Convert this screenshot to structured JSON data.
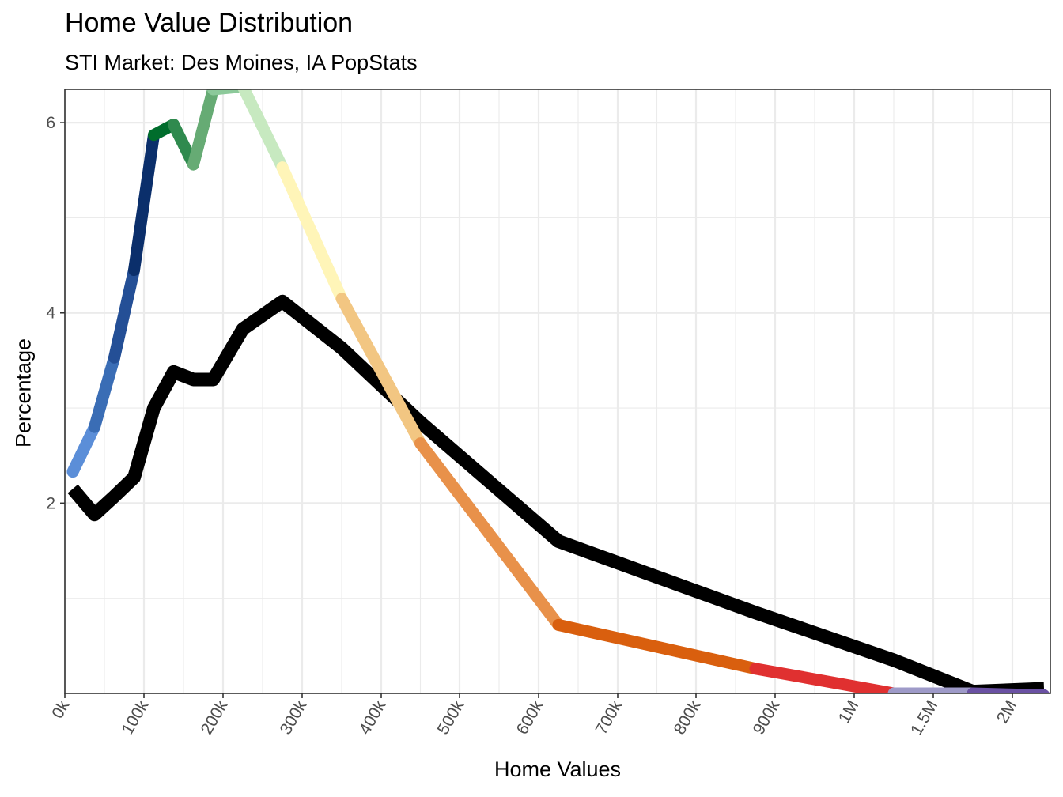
{
  "chart_data": {
    "type": "line",
    "title": "Home Value Distribution",
    "subtitle": "STI Market: Des Moines, IA PopStats",
    "xlabel": "Home Values",
    "ylabel": "Percentage",
    "x_ticks": [
      "0k",
      "100k",
      "200k",
      "300k",
      "400k",
      "500k",
      "600k",
      "700k",
      "800k",
      "900k",
      "1M",
      "1.5M",
      "2M"
    ],
    "y_ticks": [
      "2",
      "4",
      "6"
    ],
    "ylim": [
      0,
      6.35
    ],
    "grid": true,
    "series": [
      {
        "color": "#000000",
        "points": [
          {
            "x": 10000,
            "y": 2.15
          },
          {
            "x": 37500,
            "y": 1.88
          },
          {
            "x": 62500,
            "y": 2.07
          },
          {
            "x": 87500,
            "y": 2.27
          },
          {
            "x": 112500,
            "y": 3.0
          },
          {
            "x": 137500,
            "y": 3.38
          },
          {
            "x": 162500,
            "y": 3.3
          },
          {
            "x": 187500,
            "y": 3.3
          },
          {
            "x": 225000,
            "y": 3.83
          },
          {
            "x": 275000,
            "y": 4.12
          },
          {
            "x": 350000,
            "y": 3.63
          },
          {
            "x": 450000,
            "y": 2.85
          },
          {
            "x": 625000,
            "y": 1.6
          },
          {
            "x": 875000,
            "y": 0.85
          },
          {
            "x": 1250000,
            "y": 0.35
          },
          {
            "x": 1750000,
            "y": 0.02
          },
          {
            "x": 2200000,
            "y": 0.05
          }
        ]
      },
      {
        "gradient_colors": [
          "#5b8ed8",
          "#3a6db5",
          "#244f96",
          "#0b2f6b",
          "#006d2c",
          "#2f8a4e",
          "#66ab74",
          "#8cc99a",
          "#c7e9c0",
          "#fff5b8",
          "#f2c682",
          "#e8914a",
          "#d95f0e",
          "#e03030",
          "#9e9ac8",
          "#6a51a3"
        ],
        "points": [
          {
            "x": 10000,
            "y": 2.33
          },
          {
            "x": 37500,
            "y": 2.8
          },
          {
            "x": 62500,
            "y": 3.53
          },
          {
            "x": 87500,
            "y": 4.45
          },
          {
            "x": 112500,
            "y": 5.87
          },
          {
            "x": 137500,
            "y": 5.98
          },
          {
            "x": 162500,
            "y": 5.56
          },
          {
            "x": 187500,
            "y": 6.35
          },
          {
            "x": 225000,
            "y": 6.38
          },
          {
            "x": 275000,
            "y": 5.53
          },
          {
            "x": 350000,
            "y": 4.15
          },
          {
            "x": 450000,
            "y": 2.63
          },
          {
            "x": 625000,
            "y": 0.72
          },
          {
            "x": 875000,
            "y": 0.26
          },
          {
            "x": 1250000,
            "y": 0.0
          },
          {
            "x": 1750000,
            "y": 0.0
          },
          {
            "x": 2200000,
            "y": -0.02
          }
        ]
      }
    ]
  }
}
